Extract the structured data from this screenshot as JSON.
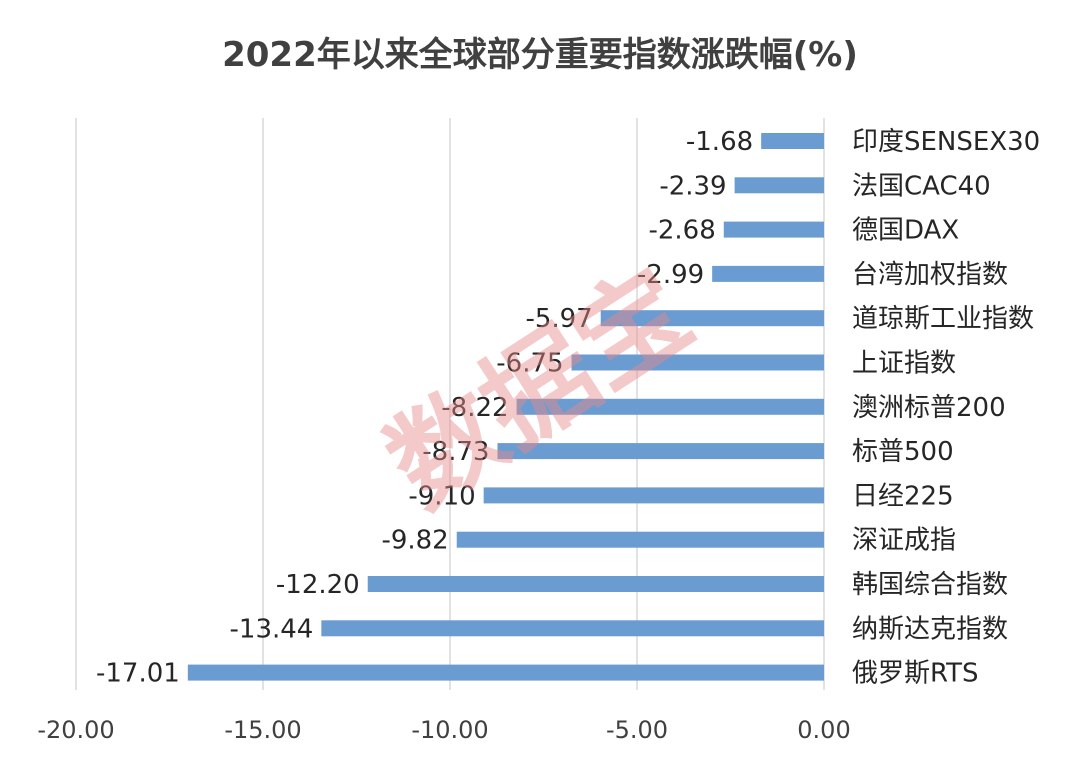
{
  "chart_data": {
    "type": "bar",
    "orientation": "horizontal",
    "title": "2022年以来全球部分重要指数涨跌幅(%)",
    "categories": [
      "印度SENSEX30",
      "法国CAC40",
      "德国DAX",
      "台湾加权指数",
      "道琼斯工业指数",
      "上证指数",
      "澳洲标普200",
      "标普500",
      "日经225",
      "深证成指",
      "韩国综合指数",
      "纳斯达克指数",
      "俄罗斯RTS"
    ],
    "values": [
      -1.68,
      -2.39,
      -2.68,
      -2.99,
      -5.97,
      -6.75,
      -8.22,
      -8.73,
      -9.1,
      -9.82,
      -12.2,
      -13.44,
      -17.01
    ],
    "data_labels": [
      "-1.68",
      "-2.39",
      "-2.68",
      "-2.99",
      "-5.97",
      "-6.75",
      "-8.22",
      "-8.73",
      "-9.10",
      "-9.82",
      "-12.20",
      "-13.44",
      "-17.01"
    ],
    "xlim": [
      -20,
      0
    ],
    "xticks": [
      -20,
      -15,
      -10,
      -5,
      0
    ],
    "xtick_labels": [
      "-20.00",
      "-15.00",
      "-10.00",
      "-5.00",
      "0.00"
    ],
    "grid": "vertical",
    "legend": "none",
    "bar_color": "#6a9bd1",
    "grid_color": "#d9d9d9",
    "watermark": "数据宝"
  }
}
